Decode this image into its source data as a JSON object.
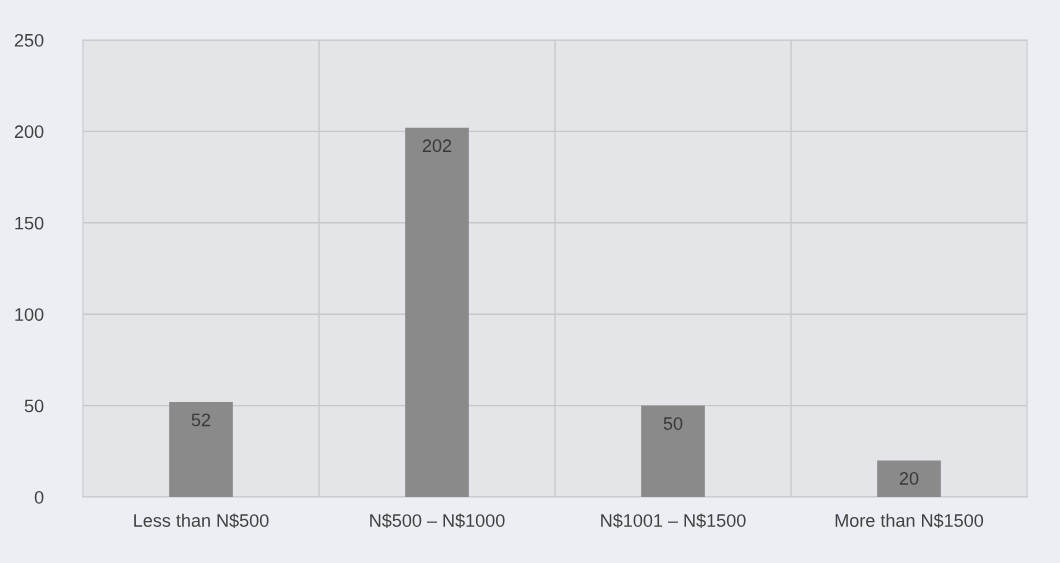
{
  "chart_data": {
    "type": "bar",
    "categories": [
      "Less than N$500",
      "N$500 – N$1000",
      "N$1001 – N$1500",
      "More than N$1500"
    ],
    "values": [
      52,
      202,
      50,
      20
    ],
    "color": "#8a8a8a",
    "ylim": [
      0,
      250
    ],
    "yticks": [
      0,
      50,
      100,
      150,
      200,
      250
    ],
    "grid": true,
    "data_labels": true,
    "legend": false
  }
}
